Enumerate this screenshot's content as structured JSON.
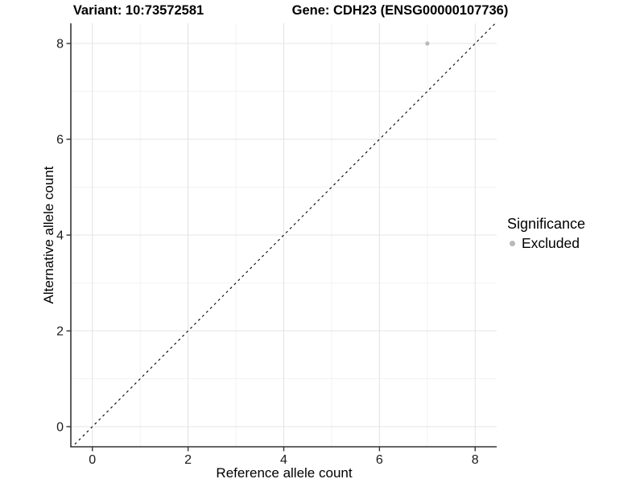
{
  "titles": {
    "variant": "Variant: 10:73572581",
    "gene": "Gene: CDH23 (ENSG00000107736)"
  },
  "axes": {
    "x_label": "Reference allele count",
    "y_label": "Alternative allele count"
  },
  "legend": {
    "title": "Significance",
    "items": [
      {
        "label": "Excluded",
        "color": "#b9b9b9"
      }
    ]
  },
  "chart_data": {
    "type": "scatter",
    "title": "Variant: 10:73572581 — Gene: CDH23 (ENSG00000107736)",
    "xlabel": "Reference allele count",
    "ylabel": "Alternative allele count",
    "xlim": [
      -0.45,
      8.45
    ],
    "ylim": [
      -0.42,
      8.42
    ],
    "x_ticks": [
      0,
      2,
      4,
      6,
      8
    ],
    "y_ticks": [
      0,
      2,
      4,
      6,
      8
    ],
    "x_minor_ticks": [
      1,
      3,
      5,
      7
    ],
    "y_minor_ticks": [
      1,
      3,
      5,
      7
    ],
    "grid": true,
    "legend_position": "right",
    "series": [
      {
        "name": "Excluded",
        "color": "#b9b9b9",
        "points": [
          {
            "x": 7,
            "y": 8
          }
        ]
      }
    ],
    "reference_line": {
      "type": "identity",
      "slope": 1,
      "intercept": 0,
      "style": "dashed",
      "color": "#000000"
    }
  },
  "colors": {
    "background": "#ffffff",
    "grid_major": "#e4e4e4",
    "grid_minor": "#f2f2f2",
    "axis_line": "#333333",
    "tick_text": "#1a1a1a"
  }
}
